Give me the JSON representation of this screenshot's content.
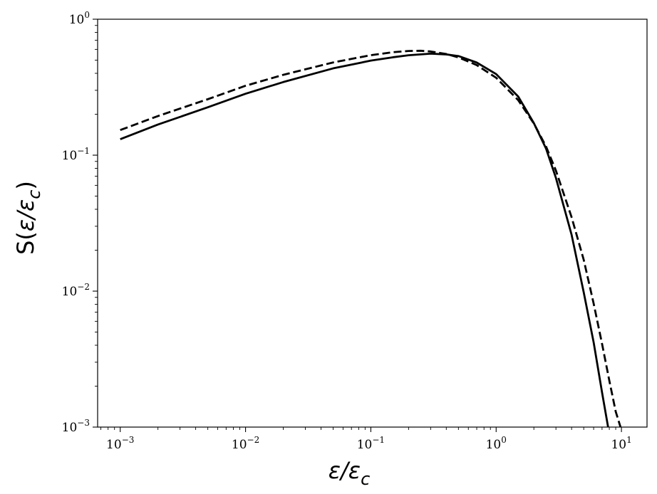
{
  "chart_data": {
    "type": "line",
    "title": "",
    "xlabel": {
      "main": "ε/ε",
      "sub": "c"
    },
    "ylabel": {
      "prefix": "S(",
      "main": "ε/ε",
      "sub": "c",
      "suffix": ")"
    },
    "xscale": "log",
    "yscale": "log",
    "xlim": [
      0.00066,
      16
    ],
    "ylim": [
      0.001,
      1
    ],
    "grid": false,
    "legend": "none",
    "x_ticks": [
      {
        "value": 0.001,
        "base": "10",
        "exp": "−3"
      },
      {
        "value": 0.01,
        "base": "10",
        "exp": "−2"
      },
      {
        "value": 0.1,
        "base": "10",
        "exp": "−1"
      },
      {
        "value": 1,
        "base": "10",
        "exp": "0"
      },
      {
        "value": 10,
        "base": "10",
        "exp": "1"
      }
    ],
    "y_ticks": [
      {
        "value": 0.001,
        "base": "10",
        "exp": "−3"
      },
      {
        "value": 0.01,
        "base": "10",
        "exp": "−2"
      },
      {
        "value": 0.1,
        "base": "10",
        "exp": "−1"
      },
      {
        "value": 1,
        "base": "10",
        "exp": "0"
      }
    ],
    "series": [
      {
        "style": "solid",
        "color": "#000000",
        "x": [
          0.001,
          0.002,
          0.005,
          0.01,
          0.02,
          0.05,
          0.1,
          0.15,
          0.2,
          0.3,
          0.4,
          0.5,
          0.7,
          1.0,
          1.5,
          2.0,
          2.5,
          3.0,
          4.0,
          5.0,
          6.0,
          7.0,
          7.9
        ],
        "y": [
          0.131,
          0.168,
          0.225,
          0.283,
          0.345,
          0.435,
          0.496,
          0.525,
          0.543,
          0.558,
          0.551,
          0.536,
          0.48,
          0.395,
          0.27,
          0.172,
          0.112,
          0.068,
          0.026,
          0.0098,
          0.0042,
          0.0018,
          0.00095
        ]
      },
      {
        "style": "dashed",
        "color": "#000000",
        "x": [
          0.001,
          0.002,
          0.005,
          0.01,
          0.02,
          0.05,
          0.1,
          0.15,
          0.2,
          0.25,
          0.3,
          0.4,
          0.5,
          0.7,
          1.0,
          1.5,
          2.0,
          2.5,
          3.0,
          4.0,
          5.0,
          6.0,
          7.0,
          8.0,
          9.0,
          10.0
        ],
        "y": [
          0.153,
          0.194,
          0.258,
          0.324,
          0.39,
          0.481,
          0.544,
          0.572,
          0.584,
          0.586,
          0.579,
          0.555,
          0.524,
          0.46,
          0.371,
          0.254,
          0.171,
          0.116,
          0.077,
          0.035,
          0.017,
          0.0081,
          0.0041,
          0.0022,
          0.0013,
          0.00095
        ]
      }
    ]
  }
}
